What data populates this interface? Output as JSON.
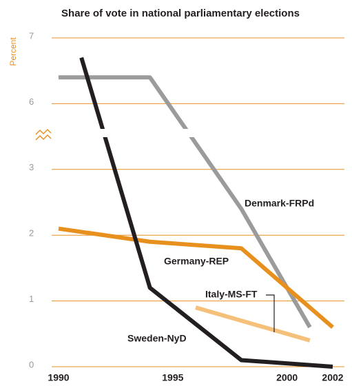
{
  "chart_data": {
    "type": "line",
    "title": "Share of vote in national parliamentary elections",
    "y_label": "Percent",
    "xlim": [
      1990,
      2002
    ],
    "xticks": [
      1990,
      1995,
      2000,
      2002
    ],
    "ylim": [
      0,
      7
    ],
    "yticks": [
      0,
      1,
      2,
      3,
      6,
      7
    ],
    "y_axis_break": [
      3,
      6
    ],
    "grid": true,
    "series": [
      {
        "name": "Denmark-FRPd",
        "color": "#9b9b9b",
        "x": [
          1990,
          1994,
          1998,
          2001
        ],
        "values": [
          6.4,
          6.4,
          2.4,
          0.6
        ]
      },
      {
        "name": "Germany-REP",
        "color": "#e8901e",
        "x": [
          1990,
          1994,
          1998,
          2002
        ],
        "values": [
          2.1,
          1.9,
          1.8,
          0.6
        ]
      },
      {
        "name": "Italy-MS-FT",
        "color": "#f5c07a",
        "x": [
          1996,
          2001
        ],
        "values": [
          0.9,
          0.4
        ]
      },
      {
        "name": "Sweden-NyD",
        "color": "#231f20",
        "x": [
          1991,
          1994,
          1998,
          2002
        ],
        "values": [
          6.7,
          1.2,
          0.1,
          0.0
        ]
      }
    ]
  }
}
